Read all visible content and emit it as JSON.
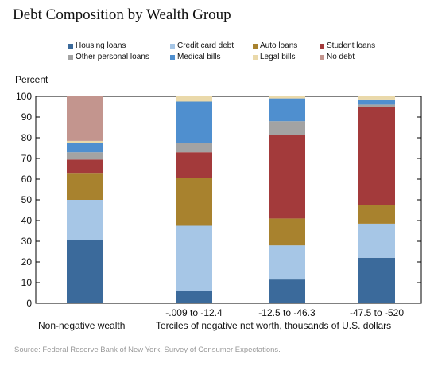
{
  "chart_data": {
    "type": "bar",
    "stacked": true,
    "title": "Debt Composition by Wealth Group",
    "ylabel": "Percent",
    "ylim": [
      0,
      100
    ],
    "yticks": [
      0,
      10,
      20,
      30,
      40,
      50,
      60,
      70,
      80,
      90,
      100
    ],
    "grid": false,
    "legend_position": "top",
    "categories": [
      "",
      "-.009 to -12.4",
      "-12.5 to -46.3",
      "-47.5 to -520"
    ],
    "group_labels": [
      "Non-negative wealth",
      "Terciles of negative net worth, thousands of U.S. dollars"
    ],
    "series": [
      {
        "name": "Housing loans",
        "color": "#3b6a9b",
        "values": [
          30.5,
          6,
          11.5,
          22
        ]
      },
      {
        "name": "Credit card debt",
        "color": "#a6c6e6",
        "values": [
          19.5,
          31.5,
          16.5,
          16.5
        ]
      },
      {
        "name": "Auto loans",
        "color": "#a8822e",
        "values": [
          13,
          23,
          13,
          9
        ]
      },
      {
        "name": "Student loans",
        "color": "#a33a3b",
        "values": [
          6.5,
          12.5,
          40.5,
          47.5
        ]
      },
      {
        "name": "Other personal loans",
        "color": "#a3a3a3",
        "values": [
          3.5,
          4.5,
          6.5,
          1
        ]
      },
      {
        "name": "Medical bills",
        "color": "#4f8fcf",
        "values": [
          4.5,
          20,
          11,
          2.5
        ]
      },
      {
        "name": "Legal bills",
        "color": "#ead9aa",
        "values": [
          1,
          2.5,
          1,
          1.5
        ]
      },
      {
        "name": "No debt",
        "color": "#c3958e",
        "values": [
          21.5,
          0,
          0,
          0
        ]
      }
    ]
  },
  "footer": {
    "source": "Source: Federal Reserve Bank of New York, Survey of Consumer Expectations."
  }
}
